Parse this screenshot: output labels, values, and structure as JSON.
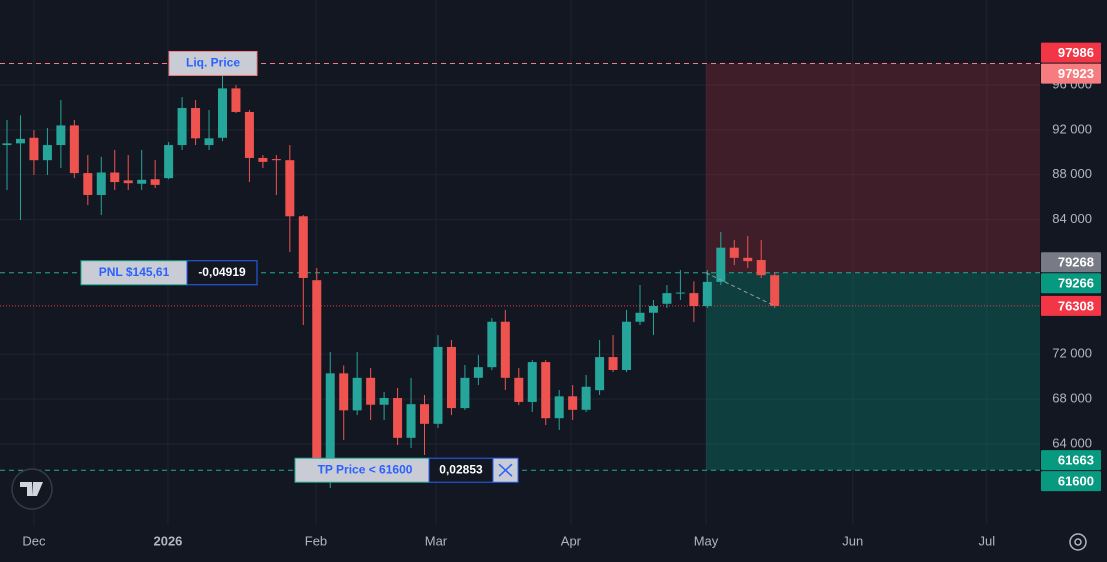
{
  "chart_data": {
    "type": "candlestick",
    "categories": [
      null,
      null,
      null,
      null,
      null,
      null,
      null,
      null,
      null,
      null,
      null,
      null,
      null,
      null,
      null,
      null,
      null,
      null,
      null,
      null,
      null,
      null,
      null,
      null,
      null,
      null,
      null,
      null,
      null,
      null,
      null,
      null,
      null,
      null,
      null,
      null,
      null,
      null,
      null,
      null,
      null,
      null,
      null,
      null,
      null,
      null,
      null,
      null,
      null,
      null,
      null,
      null,
      null,
      null,
      null,
      null,
      null,
      null
    ],
    "series": {
      "open": [
        90650,
        90800,
        91300,
        89300,
        90650,
        92400,
        88150,
        86200,
        88200,
        87500,
        87200,
        87600,
        87700,
        90650,
        93950,
        90650,
        91300,
        95700,
        93600,
        89500,
        89400,
        89300,
        84300,
        78600,
        62750,
        70300,
        67000,
        69900,
        67500,
        68100,
        64550,
        67550,
        65800,
        72650,
        67200,
        69900,
        70850,
        74900,
        69900,
        67750,
        71300,
        66300,
        68250,
        67050,
        68800,
        71750,
        70600,
        74900,
        75700,
        76500,
        77450,
        77450,
        76300,
        78450,
        81500,
        80600,
        80400,
        79050
      ],
      "high": [
        92880,
        93300,
        91990,
        92170,
        94660,
        92880,
        89760,
        89600,
        90210,
        89760,
        90210,
        89310,
        90920,
        94930,
        94660,
        93770,
        96890,
        96000,
        93770,
        89760,
        89760,
        90650,
        84410,
        79690,
        72200,
        71000,
        72200,
        70770,
        68630,
        68990,
        69880,
        68370,
        73710,
        73270,
        71040,
        71930,
        75230,
        75950,
        70770,
        71480,
        71480,
        68810,
        69260,
        70150,
        73270,
        73710,
        75950,
        78170,
        76840,
        78170,
        79510,
        78500,
        79510,
        82900,
        82180,
        82540,
        82180,
        79330
      ],
      "low": [
        86640,
        83970,
        87980,
        87980,
        88600,
        87710,
        85300,
        84410,
        86640,
        86640,
        86640,
        86820,
        87600,
        90210,
        90650,
        90210,
        91000,
        93500,
        87350,
        88600,
        86190,
        81110,
        74610,
        62130,
        60080,
        64360,
        66580,
        66140,
        66140,
        63910,
        63640,
        63020,
        65420,
        66580,
        67030,
        69260,
        70590,
        68810,
        67470,
        66850,
        65690,
        65250,
        66140,
        66850,
        68370,
        70410,
        70410,
        74610,
        73710,
        76130,
        76840,
        74870,
        76130,
        78170,
        79950,
        79700,
        78800,
        76130
      ],
      "close": [
        90800,
        91200,
        89300,
        90650,
        92400,
        88150,
        86200,
        88200,
        87350,
        87250,
        87550,
        87100,
        90650,
        93950,
        91250,
        91250,
        95700,
        93600,
        89500,
        89150,
        89300,
        84300,
        78800,
        62750,
        70300,
        67000,
        69900,
        67500,
        68100,
        64550,
        67550,
        65800,
        72650,
        67200,
        69900,
        70850,
        74900,
        69900,
        67750,
        71300,
        66300,
        68250,
        67050,
        69100,
        71750,
        70600,
        74900,
        75700,
        76300,
        77450,
        77500,
        76300,
        78450,
        81500,
        80600,
        80300,
        79050,
        76308
      ]
    },
    "up_color": "#26a69a",
    "down_color": "#ef5350",
    "ylim": [
      56780,
      103580
    ],
    "yticks": [
      {
        "value": 96000,
        "label": "96 000"
      },
      {
        "value": 92000,
        "label": "92 000"
      },
      {
        "value": 88000,
        "label": "88 000"
      },
      {
        "value": 84000,
        "label": "84 000"
      },
      {
        "value": 72000,
        "label": "72 000"
      },
      {
        "value": 68000,
        "label": "68 000"
      },
      {
        "value": 64000,
        "label": "64 000"
      }
    ],
    "xlim": [
      -0.52,
      76.7
    ],
    "xticks": [
      {
        "value": 2.0,
        "label": "Dec"
      },
      {
        "value": 11.95,
        "label": "2026"
      },
      {
        "value": 22.94,
        "label": "Feb"
      },
      {
        "value": 31.85,
        "label": "Mar"
      },
      {
        "value": 41.87,
        "label": "Apr"
      },
      {
        "value": 51.9,
        "label": "May"
      },
      {
        "value": 62.8,
        "label": "Jun"
      },
      {
        "value": 72.75,
        "label": "Jul"
      }
    ],
    "grid": true,
    "levels": [
      {
        "value": 97923,
        "color": "#f77c80"
      },
      {
        "value": 79266,
        "color": "#22ab94"
      },
      {
        "value": 76308,
        "color": "#f23645"
      },
      {
        "value": 61663,
        "color": "#22ab94"
      }
    ],
    "price_labels": [
      {
        "value": 97986,
        "color": "#f23645"
      },
      {
        "value": 97923,
        "color": "#f77c80"
      },
      {
        "value": 79268,
        "color": "#787b86"
      },
      {
        "value": 79266,
        "color": "#089981"
      },
      {
        "value": 76308,
        "color": "#f23645"
      },
      {
        "value": 61663,
        "color": "#089981"
      },
      {
        "value": 61600,
        "color": "#089981"
      }
    ],
    "position": {
      "start": 51.9,
      "stop": 97923,
      "entry": 79266,
      "target": 61663
    },
    "liq_label": "Liq. Price",
    "pnl": {
      "label": "PNL $145,61",
      "value": "-0,04919"
    },
    "tp": {
      "label": "TP Price < 61600",
      "value": "0,02853"
    }
  }
}
